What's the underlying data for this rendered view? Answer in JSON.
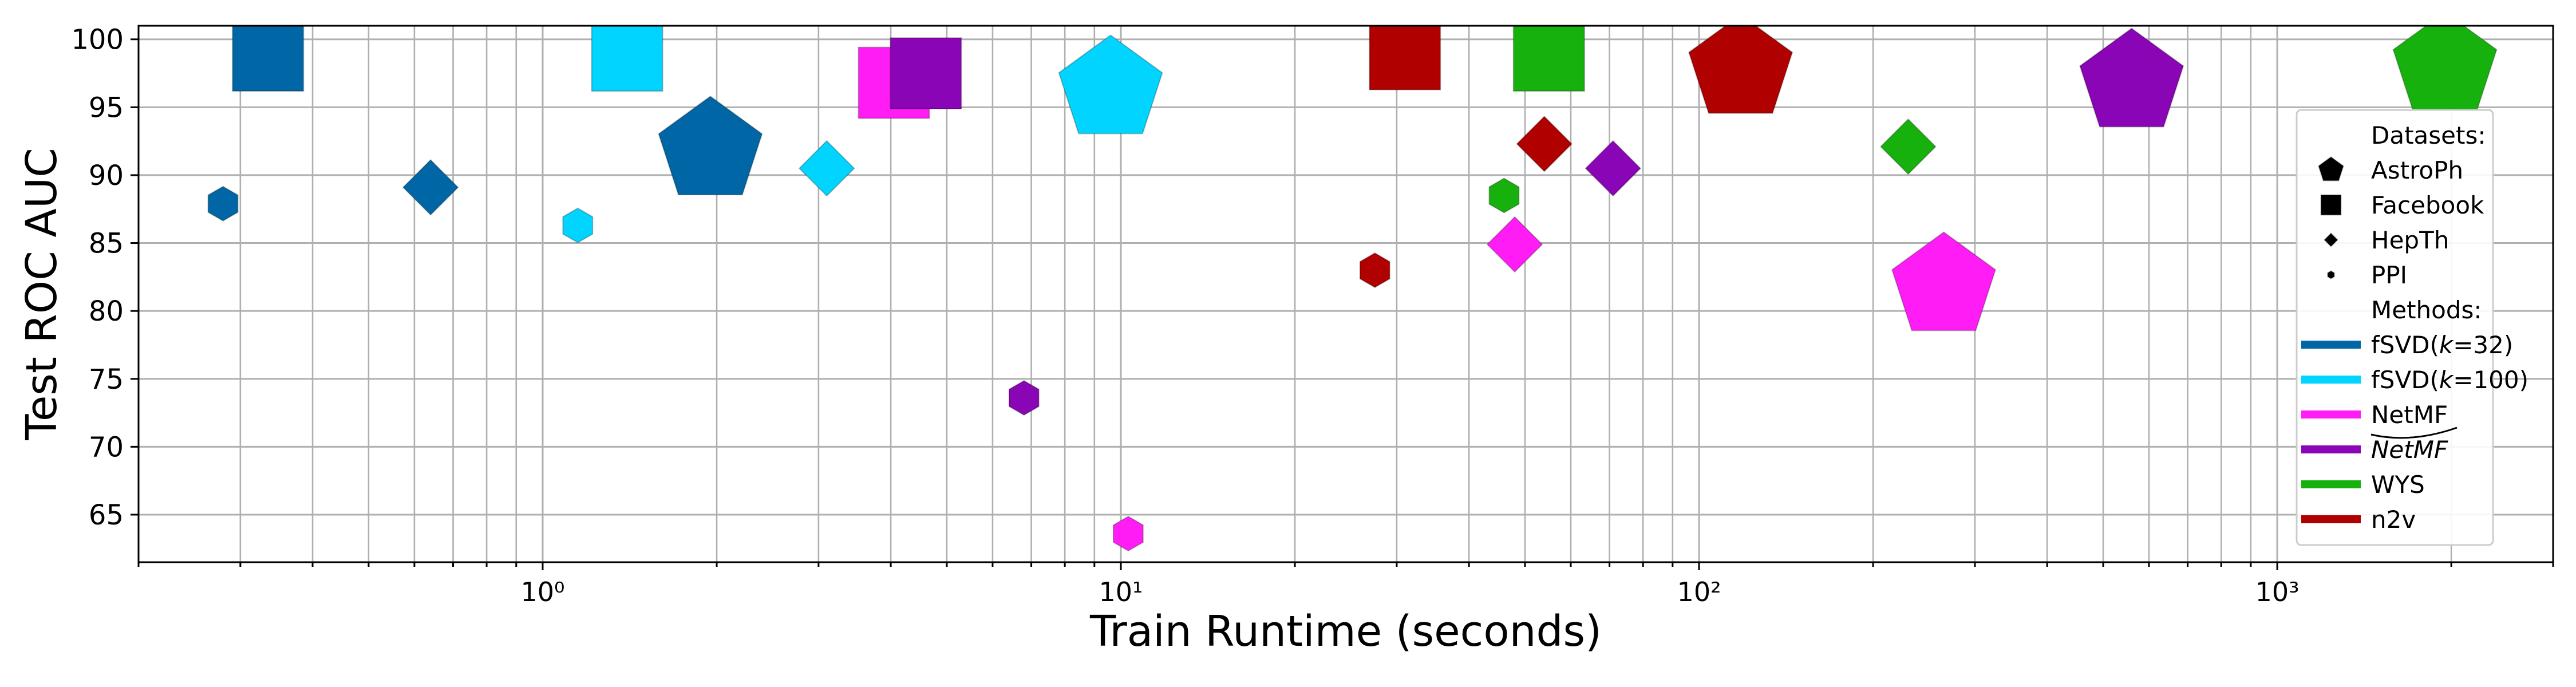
{
  "chart_data": {
    "type": "scatter",
    "xlabel": "Train Runtime (seconds)",
    "ylabel": "Test ROC AUC",
    "xscale": "log",
    "xlim": [
      0.2,
      3000
    ],
    "ylim": [
      61.5,
      101
    ],
    "grid": true,
    "legend_position": "right",
    "x_ticks": [
      {
        "value": 1,
        "label": "10⁰"
      },
      {
        "value": 10,
        "label": "10¹"
      },
      {
        "value": 100,
        "label": "10²"
      },
      {
        "value": 1000,
        "label": "10³"
      }
    ],
    "y_ticks": [
      65,
      70,
      75,
      80,
      85,
      90,
      95,
      100
    ],
    "datasets": [
      {
        "key": "AstroPh",
        "label": "AstroPh",
        "marker": "pentagon"
      },
      {
        "key": "Facebook",
        "label": "Facebook",
        "marker": "square"
      },
      {
        "key": "HepTh",
        "label": "HepTh",
        "marker": "diamond"
      },
      {
        "key": "PPI",
        "label": "PPI",
        "marker": "hexagon"
      }
    ],
    "methods": [
      {
        "key": "fsvd32",
        "color": "#0066a6",
        "label_main": "fSVD(",
        "label_italic": "k",
        "label_rest": "=32)"
      },
      {
        "key": "fsvd100",
        "color": "#00d4ff",
        "label_main": "fSVD(",
        "label_italic": "k",
        "label_rest": "=100)"
      },
      {
        "key": "netmf",
        "color": "#ff1cf5",
        "label_main": "NetMF",
        "label_italic": "",
        "label_rest": ""
      },
      {
        "key": "netmfhat",
        "color": "#8a05b5",
        "label_main": "",
        "label_italic": "NetMF",
        "label_rest": "",
        "tilde": true
      },
      {
        "key": "wys",
        "color": "#17b10e",
        "label_main": "WYS",
        "label_italic": "",
        "label_rest": ""
      },
      {
        "key": "n2v",
        "color": "#b00000",
        "label_main": "n2v",
        "label_italic": "",
        "label_rest": ""
      }
    ],
    "legend": {
      "datasets_heading": "Datasets:",
      "methods_heading": "Methods:"
    },
    "points": [
      {
        "method": "fsvd32",
        "dataset": "AstroPh",
        "x": 1.95,
        "y": 91.8
      },
      {
        "method": "fsvd32",
        "dataset": "Facebook",
        "x": 0.335,
        "y": 98.8
      },
      {
        "method": "fsvd32",
        "dataset": "HepTh",
        "x": 0.64,
        "y": 89.1
      },
      {
        "method": "fsvd32",
        "dataset": "PPI",
        "x": 0.28,
        "y": 87.9
      },
      {
        "method": "fsvd100",
        "dataset": "AstroPh",
        "x": 9.6,
        "y": 96.3
      },
      {
        "method": "fsvd100",
        "dataset": "Facebook",
        "x": 1.4,
        "y": 98.8
      },
      {
        "method": "fsvd100",
        "dataset": "HepTh",
        "x": 3.1,
        "y": 90.5
      },
      {
        "method": "fsvd100",
        "dataset": "PPI",
        "x": 1.15,
        "y": 86.3
      },
      {
        "method": "netmf",
        "dataset": "AstroPh",
        "x": 265,
        "y": 81.8
      },
      {
        "method": "netmf",
        "dataset": "Facebook",
        "x": 4.05,
        "y": 96.8
      },
      {
        "method": "netmf",
        "dataset": "HepTh",
        "x": 48,
        "y": 84.9
      },
      {
        "method": "netmf",
        "dataset": "PPI",
        "x": 10.3,
        "y": 63.6
      },
      {
        "method": "netmfhat",
        "dataset": "AstroPh",
        "x": 560,
        "y": 96.8
      },
      {
        "method": "netmfhat",
        "dataset": "Facebook",
        "x": 4.6,
        "y": 97.5
      },
      {
        "method": "netmfhat",
        "dataset": "HepTh",
        "x": 71,
        "y": 90.5
      },
      {
        "method": "netmfhat",
        "dataset": "PPI",
        "x": 6.8,
        "y": 73.6
      },
      {
        "method": "wys",
        "dataset": "AstroPh",
        "x": 1950,
        "y": 98.0
      },
      {
        "method": "wys",
        "dataset": "Facebook",
        "x": 55,
        "y": 98.8
      },
      {
        "method": "wys",
        "dataset": "HepTh",
        "x": 230,
        "y": 92.1
      },
      {
        "method": "wys",
        "dataset": "PPI",
        "x": 46,
        "y": 88.5
      },
      {
        "method": "n2v",
        "dataset": "AstroPh",
        "x": 118,
        "y": 97.8
      },
      {
        "method": "n2v",
        "dataset": "Facebook",
        "x": 31,
        "y": 98.9
      },
      {
        "method": "n2v",
        "dataset": "HepTh",
        "x": 54,
        "y": 92.3
      },
      {
        "method": "n2v",
        "dataset": "PPI",
        "x": 27.5,
        "y": 83.0
      }
    ]
  }
}
